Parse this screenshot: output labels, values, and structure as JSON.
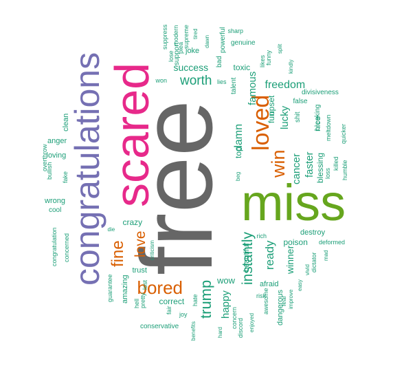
{
  "colors": {
    "gray": "#666666",
    "green": "#66a61e",
    "pink": "#e7298a",
    "purple": "#7570b3",
    "orange": "#d95f02",
    "teal": "#1b9e77"
  },
  "words": [
    {
      "text": "free",
      "color": "gray"
    },
    {
      "text": "miss",
      "color": "green"
    },
    {
      "text": "scared",
      "color": "pink"
    },
    {
      "text": "congratulations",
      "color": "purple"
    },
    {
      "text": "loved",
      "color": "orange"
    },
    {
      "text": "bored",
      "color": "orange"
    },
    {
      "text": "fine",
      "color": "orange"
    },
    {
      "text": "love",
      "color": "orange"
    },
    {
      "text": "win",
      "color": "orange"
    },
    {
      "text": "trump",
      "color": "teal"
    },
    {
      "text": "instantly",
      "color": "teal"
    },
    {
      "text": "worth",
      "color": "teal"
    },
    {
      "text": "freedom",
      "color": "teal"
    },
    {
      "text": "famous",
      "color": "teal"
    },
    {
      "text": "damn",
      "color": "teal"
    },
    {
      "text": "lucky",
      "color": "teal"
    },
    {
      "text": "cancer",
      "color": "teal"
    },
    {
      "text": "faster",
      "color": "teal"
    },
    {
      "text": "ready",
      "color": "teal"
    },
    {
      "text": "winner",
      "color": "teal"
    },
    {
      "text": "happy",
      "color": "teal"
    },
    {
      "text": "success",
      "color": "teal"
    },
    {
      "text": "crazy",
      "color": "teal"
    },
    {
      "text": "wow",
      "color": "teal"
    },
    {
      "text": "fun",
      "color": "teal"
    },
    {
      "text": "upset",
      "color": "teal"
    },
    {
      "text": "toxic",
      "color": "teal"
    },
    {
      "text": "top",
      "color": "teal"
    },
    {
      "text": "nice",
      "color": "teal"
    },
    {
      "text": "poison",
      "color": "teal"
    },
    {
      "text": "blessing",
      "color": "teal"
    },
    {
      "text": "correct",
      "color": "teal"
    },
    {
      "text": "amazing",
      "color": "teal"
    },
    {
      "text": "afraid",
      "color": "teal"
    },
    {
      "text": "beautiful",
      "color": "teal"
    },
    {
      "text": "destroy",
      "color": "teal"
    },
    {
      "text": "dangerous",
      "color": "teal"
    },
    {
      "text": "trust",
      "color": "teal"
    },
    {
      "text": "joke",
      "color": "teal"
    },
    {
      "text": "genuine",
      "color": "teal"
    },
    {
      "text": "support",
      "color": "teal"
    },
    {
      "text": "bad",
      "color": "teal"
    },
    {
      "text": "powerful",
      "color": "teal"
    },
    {
      "text": "talent",
      "color": "teal"
    },
    {
      "text": "suppress",
      "color": "teal"
    },
    {
      "text": "lose",
      "color": "teal"
    },
    {
      "text": "plea",
      "color": "teal"
    },
    {
      "text": "modern",
      "color": "teal"
    },
    {
      "text": "supreme",
      "color": "teal"
    },
    {
      "text": "tired",
      "color": "teal"
    },
    {
      "text": "dawn",
      "color": "teal"
    },
    {
      "text": "sharp",
      "color": "teal"
    },
    {
      "text": "likes",
      "color": "teal"
    },
    {
      "text": "funny",
      "color": "teal"
    },
    {
      "text": "split",
      "color": "teal"
    },
    {
      "text": "kindly",
      "color": "teal"
    },
    {
      "text": "won",
      "color": "teal"
    },
    {
      "text": "lies",
      "color": "teal"
    },
    {
      "text": "divisiveness",
      "color": "teal"
    },
    {
      "text": "false",
      "color": "teal"
    },
    {
      "text": "shit",
      "color": "teal"
    },
    {
      "text": "breaking",
      "color": "teal"
    },
    {
      "text": "meltdown",
      "color": "teal"
    },
    {
      "text": "quicker",
      "color": "teal"
    },
    {
      "text": "loss",
      "color": "teal"
    },
    {
      "text": "killed",
      "color": "teal"
    },
    {
      "text": "humble",
      "color": "teal"
    },
    {
      "text": "beg",
      "color": "teal"
    },
    {
      "text": "clean",
      "color": "teal"
    },
    {
      "text": "anger",
      "color": "teal"
    },
    {
      "text": "loving",
      "color": "teal"
    },
    {
      "text": "overthrow",
      "color": "teal"
    },
    {
      "text": "bullish",
      "color": "teal"
    },
    {
      "text": "fake",
      "color": "teal"
    },
    {
      "text": "wrong",
      "color": "teal"
    },
    {
      "text": "cool",
      "color": "teal"
    },
    {
      "text": "congratulation",
      "color": "teal"
    },
    {
      "text": "concerned",
      "color": "teal"
    },
    {
      "text": "die",
      "color": "teal"
    },
    {
      "text": "guarantee",
      "color": "teal"
    },
    {
      "text": "hell",
      "color": "teal"
    },
    {
      "text": "pretty",
      "color": "teal"
    },
    {
      "text": "criticism",
      "color": "teal"
    },
    {
      "text": "lost",
      "color": "teal"
    },
    {
      "text": "fair",
      "color": "teal"
    },
    {
      "text": "hate",
      "color": "teal"
    },
    {
      "text": "joy",
      "color": "teal"
    },
    {
      "text": "benefits",
      "color": "teal"
    },
    {
      "text": "conservative",
      "color": "teal"
    },
    {
      "text": "hard",
      "color": "teal"
    },
    {
      "text": "concern",
      "color": "teal"
    },
    {
      "text": "discord",
      "color": "teal"
    },
    {
      "text": "enjoyed",
      "color": "teal"
    },
    {
      "text": "risk",
      "color": "teal"
    },
    {
      "text": "awesome",
      "color": "teal"
    },
    {
      "text": "fear",
      "color": "teal"
    },
    {
      "text": "improve",
      "color": "teal"
    },
    {
      "text": "easy",
      "color": "teal"
    },
    {
      "text": "vivid",
      "color": "teal"
    },
    {
      "text": "dictator",
      "color": "teal"
    },
    {
      "text": "mad",
      "color": "teal"
    },
    {
      "text": "deformed",
      "color": "teal"
    },
    {
      "text": "rich",
      "color": "teal"
    }
  ]
}
